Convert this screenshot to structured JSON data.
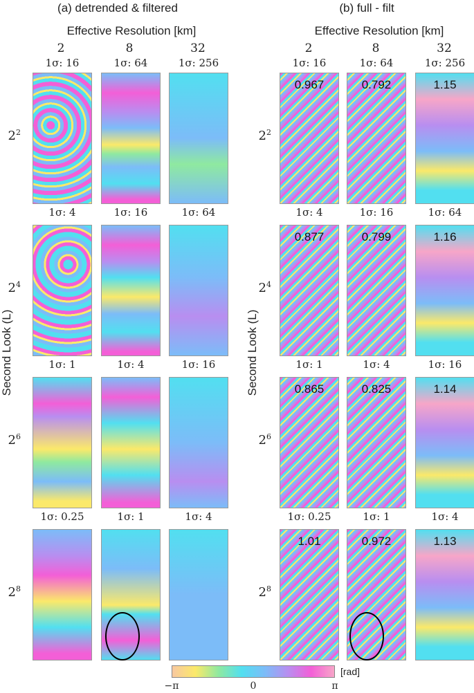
{
  "panel_a": {
    "title": "(a) detrended & filtered",
    "header": "Effective Resolution [km]",
    "cols": [
      "2",
      "8",
      "32"
    ],
    "sigma_rows": [
      [
        "1σ: 16",
        "1σ: 64",
        "1σ: 256"
      ],
      [
        "1σ: 4",
        "1σ: 16",
        "1σ: 64"
      ],
      [
        "1σ: 1",
        "1σ: 4",
        "1σ: 16"
      ],
      [
        "1σ: 0.25",
        "1σ: 1",
        "1σ: 4"
      ]
    ]
  },
  "panel_b": {
    "title": "(b) full - filt",
    "header": "Effective Resolution [km]",
    "cols": [
      "2",
      "8",
      "32"
    ],
    "sigma_rows": [
      [
        "1σ: 16",
        "1σ: 64",
        "1σ: 256"
      ],
      [
        "1σ: 4",
        "1σ: 16",
        "1σ: 64"
      ],
      [
        "1σ: 1",
        "1σ: 4",
        "1σ: 16"
      ],
      [
        "1σ: 0.25",
        "1σ: 1",
        "1σ: 4"
      ]
    ],
    "values": [
      [
        "0.967",
        "0.792",
        "1.15"
      ],
      [
        "0.877",
        "0.799",
        "1.16"
      ],
      [
        "0.865",
        "0.825",
        "1.14"
      ],
      [
        "1.01",
        "0.972",
        "1.13"
      ]
    ]
  },
  "y_axis_label": "Second Look (L)",
  "row_labels": [
    {
      "base": "2",
      "exp": "2"
    },
    {
      "base": "2",
      "exp": "4"
    },
    {
      "base": "2",
      "exp": "6"
    },
    {
      "base": "2",
      "exp": "8"
    }
  ],
  "colorbar": {
    "min_label": "−π",
    "mid_label": "0",
    "max_label": "π",
    "unit": "[rad]",
    "colors": [
      "#f8c8a0",
      "#fbe96a",
      "#8fe9a0",
      "#52dff0",
      "#7cbcf8",
      "#b88ef0",
      "#f35fd7",
      "#f7a6c8"
    ]
  }
}
